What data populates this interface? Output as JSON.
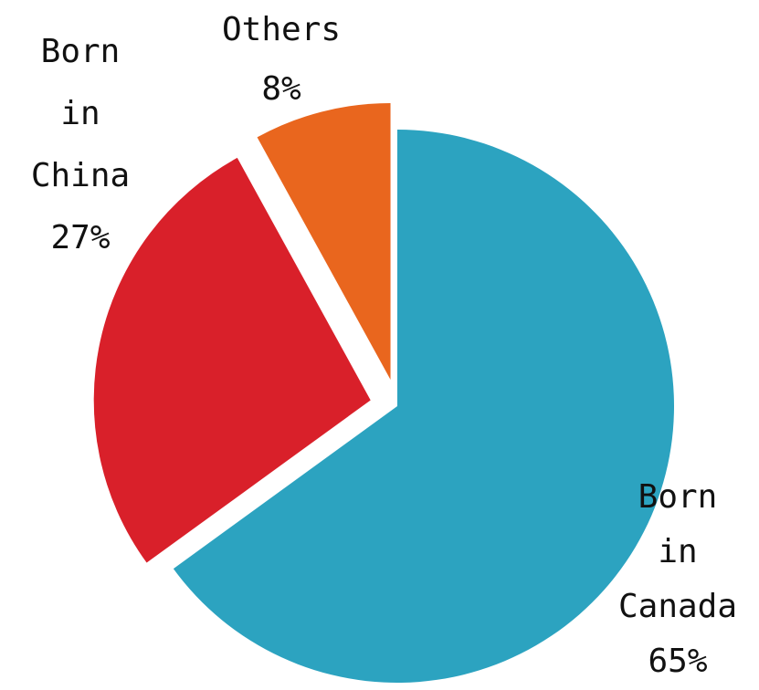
{
  "chart_data": {
    "type": "pie",
    "categories": [
      "Born in Canada",
      "Born in China",
      "Others"
    ],
    "values": [
      65,
      27,
      8
    ],
    "value_labels": [
      "65%",
      "27%",
      "8%"
    ],
    "colors": [
      "#2ca3c0",
      "#d9202a",
      "#e9661e"
    ],
    "explode": [
      false,
      true,
      true
    ],
    "start_angle": "top",
    "direction": "clockwise"
  }
}
